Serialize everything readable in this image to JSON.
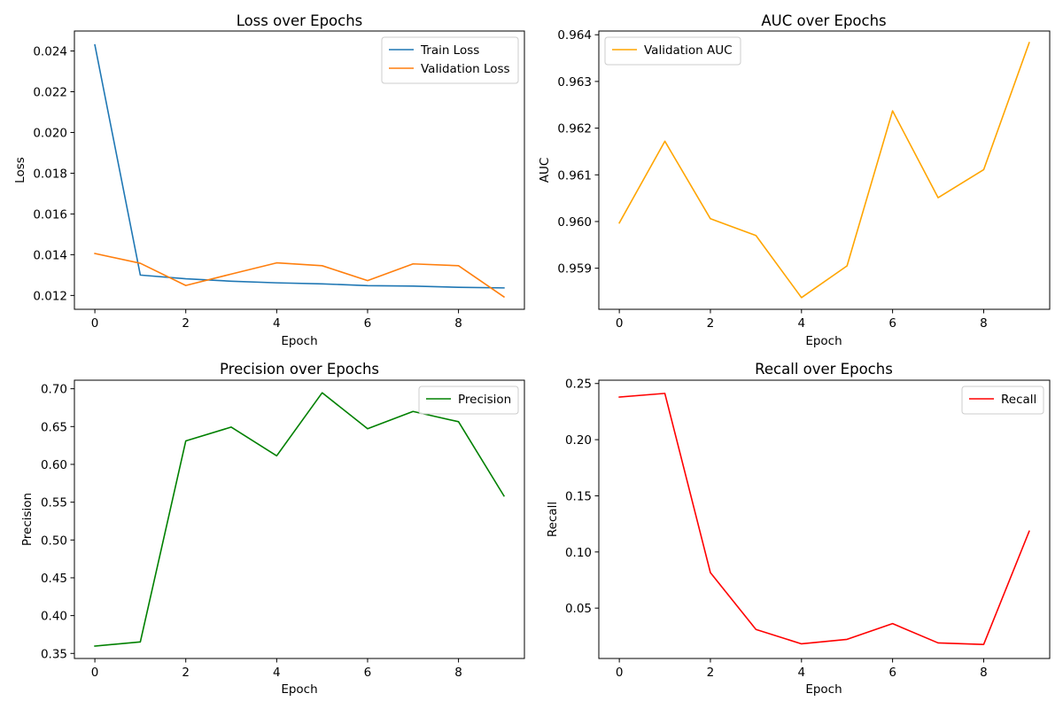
{
  "chart_data": [
    {
      "type": "line",
      "title": "Loss over Epochs",
      "xlabel": "Epoch",
      "ylabel": "Loss",
      "x": [
        0,
        1,
        2,
        3,
        4,
        5,
        6,
        7,
        8,
        9
      ],
      "xlim": [
        -0.45,
        9.45
      ],
      "ylim": [
        0.01132,
        0.02498
      ],
      "xticks": [
        0,
        2,
        4,
        6,
        8
      ],
      "yticks": [
        0.012,
        0.014,
        0.016,
        0.018,
        0.02,
        0.022,
        0.024
      ],
      "ytick_labels": [
        "0.012",
        "0.014",
        "0.016",
        "0.018",
        "0.020",
        "0.022",
        "0.024"
      ],
      "grid": false,
      "legend_position": "upper right",
      "series": [
        {
          "name": "Train Loss",
          "color": "#1f77b4",
          "values": [
            0.0243,
            0.013,
            0.01282,
            0.0127,
            0.01262,
            0.01257,
            0.01248,
            0.01246,
            0.0124,
            0.01237
          ]
        },
        {
          "name": "Validation Loss",
          "color": "#ff7f0e",
          "values": [
            0.01406,
            0.01358,
            0.01249,
            0.01305,
            0.0136,
            0.01346,
            0.01273,
            0.01355,
            0.01346,
            0.01193
          ]
        }
      ]
    },
    {
      "type": "line",
      "title": "AUC over Epochs",
      "xlabel": "Epoch",
      "ylabel": "AUC",
      "x": [
        0,
        1,
        2,
        3,
        4,
        5,
        6,
        7,
        8,
        9
      ],
      "xlim": [
        -0.45,
        9.45
      ],
      "ylim": [
        0.95812,
        0.96408
      ],
      "xticks": [
        0,
        2,
        4,
        6,
        8
      ],
      "yticks": [
        0.959,
        0.96,
        0.961,
        0.962,
        0.963,
        0.964
      ],
      "ytick_labels": [
        "0.959",
        "0.960",
        "0.961",
        "0.962",
        "0.963",
        "0.964"
      ],
      "grid": false,
      "legend_position": "upper left",
      "series": [
        {
          "name": "Validation AUC",
          "color": "#ffa500",
          "values": [
            0.95997,
            0.96172,
            0.96006,
            0.9597,
            0.95837,
            0.95905,
            0.96237,
            0.96051,
            0.96111,
            0.96383
          ]
        }
      ]
    },
    {
      "type": "line",
      "title": "Precision over Epochs",
      "xlabel": "Epoch",
      "ylabel": "Precision",
      "x": [
        0,
        1,
        2,
        3,
        4,
        5,
        6,
        7,
        8,
        9
      ],
      "xlim": [
        -0.45,
        9.45
      ],
      "ylim": [
        0.3433,
        0.7113
      ],
      "xticks": [
        0,
        2,
        4,
        6,
        8
      ],
      "yticks": [
        0.35,
        0.4,
        0.45,
        0.5,
        0.55,
        0.6,
        0.65,
        0.7
      ],
      "ytick_labels": [
        "0.35",
        "0.40",
        "0.45",
        "0.50",
        "0.55",
        "0.60",
        "0.65",
        "0.70"
      ],
      "grid": false,
      "legend_position": "upper right",
      "series": [
        {
          "name": "Precision",
          "color": "#008000",
          "values": [
            0.3597,
            0.3652,
            0.631,
            0.6493,
            0.6113,
            0.6947,
            0.6471,
            0.67,
            0.6564,
            0.5583
          ]
        }
      ]
    },
    {
      "type": "line",
      "title": "Recall over Epochs",
      "xlabel": "Epoch",
      "ylabel": "Recall",
      "x": [
        0,
        1,
        2,
        3,
        4,
        5,
        6,
        7,
        8,
        9
      ],
      "xlim": [
        -0.45,
        9.45
      ],
      "ylim": [
        0.00515,
        0.25295
      ],
      "xticks": [
        0,
        2,
        4,
        6,
        8
      ],
      "yticks": [
        0.05,
        0.1,
        0.15,
        0.2,
        0.25
      ],
      "ytick_labels": [
        "0.05",
        "0.10",
        "0.15",
        "0.20",
        "0.25"
      ],
      "grid": false,
      "legend_position": "upper right",
      "series": [
        {
          "name": "Recall",
          "color": "#ff0000",
          "values": [
            0.2379,
            0.2412,
            0.0816,
            0.031,
            0.0182,
            0.0222,
            0.0362,
            0.019,
            0.0176,
            0.1185
          ]
        }
      ]
    }
  ]
}
